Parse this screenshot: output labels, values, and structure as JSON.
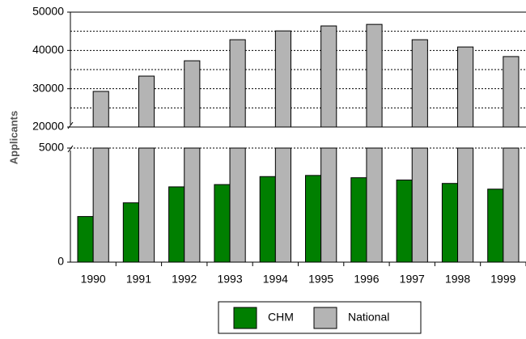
{
  "chart_data": {
    "type": "bar",
    "y_label": "Applicants",
    "categories": [
      "1990",
      "1991",
      "1992",
      "1993",
      "1994",
      "1995",
      "1996",
      "1997",
      "1998",
      "1999"
    ],
    "series": [
      {
        "name": "CHM",
        "color": "#007f00",
        "values": [
          2000,
          2600,
          3300,
          3400,
          3750,
          3800,
          3700,
          3600,
          3450,
          3200
        ]
      },
      {
        "name": "National",
        "color": "#b4b4b4",
        "values": [
          29300,
          33300,
          37300,
          42800,
          45100,
          46400,
          46800,
          42800,
          40900,
          38400
        ]
      }
    ],
    "ylim": [
      0,
      5000
    ],
    "yticks": [
      0,
      5000
    ],
    "upper_ylim": [
      20000,
      50000
    ],
    "upper_yticks": [
      20000,
      30000,
      40000,
      50000
    ],
    "upper_minor_yticks": [
      25000,
      35000,
      45000
    ],
    "grid": true,
    "legend": "bottom"
  }
}
